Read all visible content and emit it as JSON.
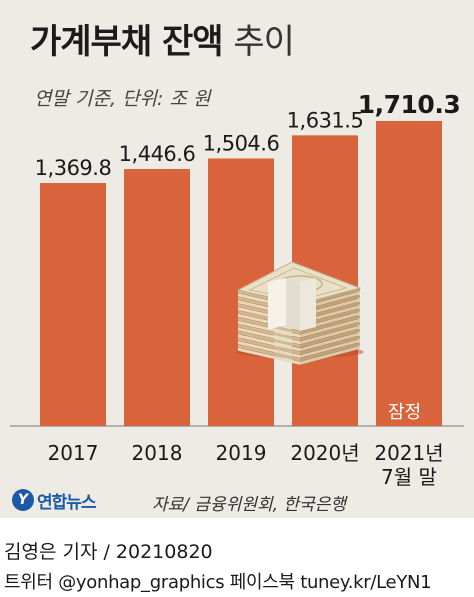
{
  "chart_data": {
    "type": "bar",
    "title": "가계부채 잔액",
    "title_suffix": "추이",
    "subtitle": "연말 기준, 단위: 조 원",
    "categories": [
      "2017",
      "2018",
      "2019",
      "2020년",
      "2021년\n7월 말"
    ],
    "values": [
      1369.8,
      1446.6,
      1504.6,
      1631.5,
      1710.3
    ],
    "value_labels": [
      "1,369.8",
      "1,446.6",
      "1,504.6",
      "1,631.5",
      "1,710.3"
    ],
    "highlight_index": 4,
    "annotation": "잠정",
    "xlabel": "",
    "ylabel": "",
    "grid": false,
    "bar_color": "#d9633a"
  },
  "footer": {
    "logo_mark": "Y",
    "logo_text": "연합뉴스",
    "source": "자료/ 금융위원회, 한국은행",
    "credit": "김영은 기자 / 20210820",
    "social": "트위터 @yonhap_graphics  페이스북 tuney.kr/LeYN1"
  }
}
